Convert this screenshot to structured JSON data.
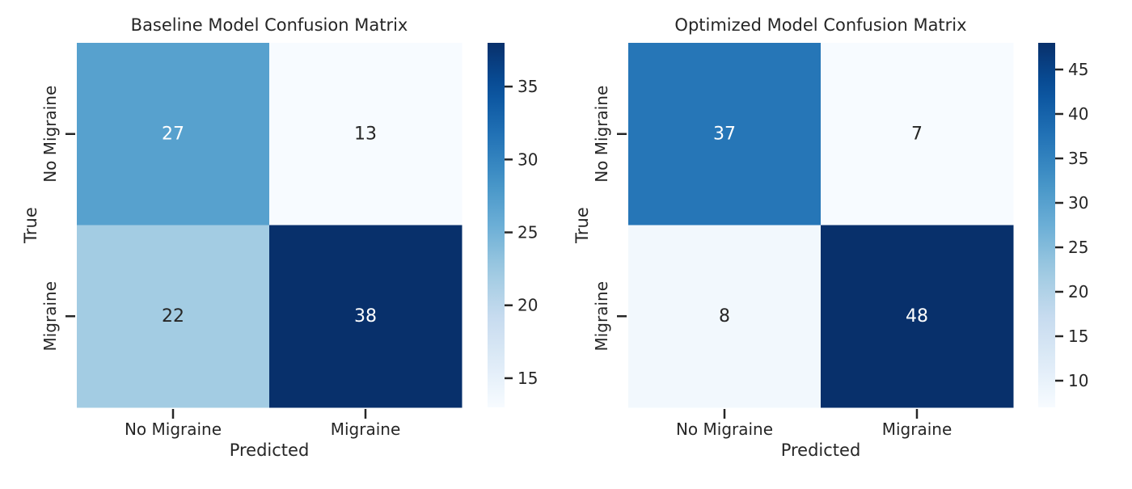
{
  "chart_data": [
    {
      "type": "heatmap",
      "title": "Baseline Model Confusion Matrix",
      "xlabel": "Predicted",
      "ylabel": "True",
      "x_categories": [
        "No Migraine",
        "Migraine"
      ],
      "y_categories": [
        "No Migraine",
        "Migraine"
      ],
      "values": [
        [
          27,
          13
        ],
        [
          22,
          38
        ]
      ],
      "colormap": "Blues",
      "vmin": 13,
      "vmax": 38,
      "colorbar_ticks": [
        15,
        20,
        25,
        30,
        35
      ]
    },
    {
      "type": "heatmap",
      "title": "Optimized Model Confusion Matrix",
      "xlabel": "Predicted",
      "ylabel": "True",
      "x_categories": [
        "No Migraine",
        "Migraine"
      ],
      "y_categories": [
        "No Migraine",
        "Migraine"
      ],
      "values": [
        [
          37,
          7
        ],
        [
          8,
          48
        ]
      ],
      "colormap": "Blues",
      "vmin": 7,
      "vmax": 48,
      "colorbar_ticks": [
        10,
        15,
        20,
        25,
        30,
        35,
        40,
        45
      ]
    }
  ]
}
